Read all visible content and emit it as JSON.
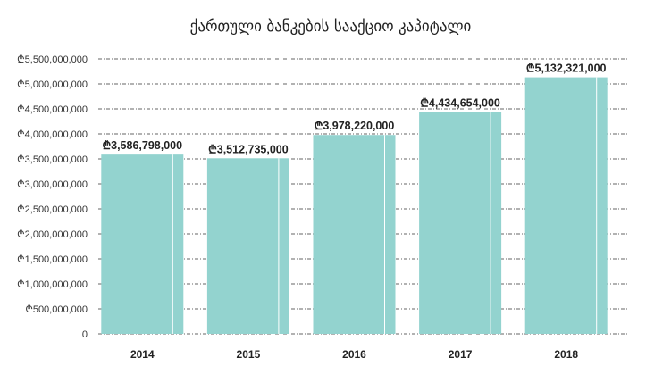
{
  "chart_data": {
    "type": "bar",
    "title": "ქართული ბანკების სააქციო კაპიტალი",
    "categories": [
      "2014",
      "2015",
      "2016",
      "2017",
      "2018"
    ],
    "values": [
      3586798000,
      3512735000,
      3978220000,
      4434654000,
      5132321000
    ],
    "data_labels": [
      "₾3,586,798,000",
      "₾3,512,735,000",
      "₾3,978,220,000",
      "₾4,434,654,000",
      "₾5,132,321,000"
    ],
    "y_ticks": [
      0,
      500000000,
      1000000000,
      1500000000,
      2000000000,
      2500000000,
      3000000000,
      3500000000,
      4000000000,
      4500000000,
      5000000000,
      5500000000
    ],
    "y_tick_labels": [
      "0",
      "₾500,000,000",
      "₾1,000,000,000",
      "₾1,500,000,000",
      "₾2,000,000,000",
      "₾2,500,000,000",
      "₾3,000,000,000",
      "₾3,500,000,000",
      "₾4,000,000,000",
      "₾4,500,000,000",
      "₾5,000,000,000",
      "₾5,500,000,000"
    ],
    "ylim": [
      0,
      5500000000
    ],
    "grid": true,
    "colors": {
      "bar": "#93d3cf",
      "grid": "#333333",
      "text": "#222222"
    }
  }
}
